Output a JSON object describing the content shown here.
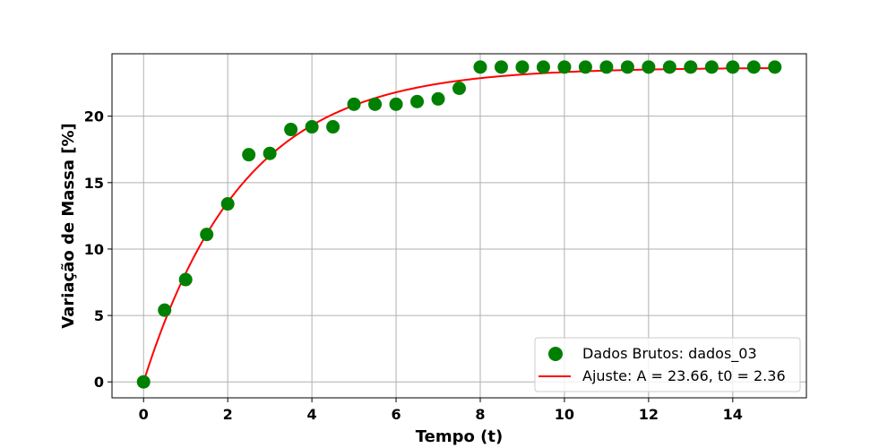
{
  "chart_data": {
    "type": "scatter",
    "xlabel": "Tempo (t)",
    "ylabel": "Variação de Massa [%]",
    "xlim": [
      -0.75,
      15.75
    ],
    "ylim": [
      -1.2,
      24.7
    ],
    "x_ticks": [
      0,
      2,
      4,
      6,
      8,
      10,
      12,
      14
    ],
    "y_ticks": [
      0,
      5,
      10,
      15,
      20
    ],
    "grid": true,
    "legend_position": "lower-right",
    "series": [
      {
        "name": "Dados Brutos: dados_03",
        "kind": "scatter",
        "color": "#008000",
        "points": [
          [
            0,
            0
          ],
          [
            0.5,
            5.4
          ],
          [
            1,
            7.7
          ],
          [
            1.5,
            11.1
          ],
          [
            2,
            13.4
          ],
          [
            2.5,
            17.1
          ],
          [
            3,
            17.2
          ],
          [
            3.5,
            19.0
          ],
          [
            4,
            19.2
          ],
          [
            4.5,
            19.2
          ],
          [
            5,
            20.9
          ],
          [
            5.5,
            20.9
          ],
          [
            6,
            20.9
          ],
          [
            6.5,
            21.1
          ],
          [
            7,
            21.3
          ],
          [
            7.5,
            22.1
          ],
          [
            8,
            23.7
          ],
          [
            8.5,
            23.7
          ],
          [
            9,
            23.7
          ],
          [
            9.5,
            23.7
          ],
          [
            10,
            23.7
          ],
          [
            10.5,
            23.7
          ],
          [
            11,
            23.7
          ],
          [
            11.5,
            23.7
          ],
          [
            12,
            23.7
          ],
          [
            12.5,
            23.7
          ],
          [
            13,
            23.7
          ],
          [
            13.5,
            23.7
          ],
          [
            14,
            23.7
          ],
          [
            14.5,
            23.7
          ],
          [
            15,
            23.7
          ]
        ]
      },
      {
        "name": "Ajuste: A = 23.66, t0 = 2.36",
        "kind": "line",
        "color": "#ff0000",
        "model": "A*(1-exp(-t/t0))",
        "A": 23.66,
        "t0": 2.36,
        "x_range": [
          0,
          15
        ]
      }
    ]
  }
}
